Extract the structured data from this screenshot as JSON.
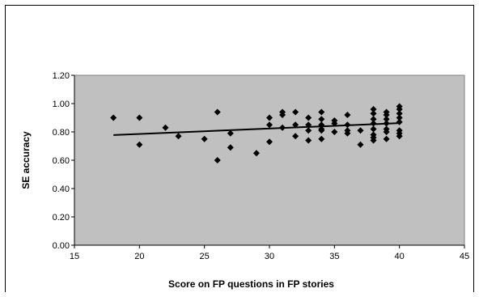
{
  "chart_data": {
    "type": "scatter",
    "title": "",
    "xlabel": "Score on FP questions in FP stories",
    "ylabel": "SE accuracy",
    "xlim": [
      15,
      45
    ],
    "ylim": [
      0,
      1.2
    ],
    "xticks": [
      "15",
      "20",
      "25",
      "30",
      "35",
      "40",
      "45"
    ],
    "yticks": [
      "0.00",
      "0.20",
      "0.40",
      "0.60",
      "0.80",
      "1.00",
      "1.20"
    ],
    "grid": false,
    "legend": "none",
    "plot_background": "#c0c0c0",
    "marker": "diamond",
    "marker_color": "#000000",
    "points": [
      [
        18,
        0.9
      ],
      [
        20,
        0.9
      ],
      [
        20,
        0.71
      ],
      [
        22,
        0.83
      ],
      [
        23,
        0.77
      ],
      [
        25,
        0.75
      ],
      [
        26,
        0.94
      ],
      [
        26,
        0.6
      ],
      [
        27,
        0.79
      ],
      [
        27,
        0.69
      ],
      [
        29,
        0.65
      ],
      [
        30,
        0.9
      ],
      [
        30,
        0.85
      ],
      [
        30,
        0.73
      ],
      [
        31,
        0.94
      ],
      [
        31,
        0.92
      ],
      [
        31,
        0.83
      ],
      [
        32,
        0.94
      ],
      [
        32,
        0.85
      ],
      [
        32,
        0.77
      ],
      [
        33,
        0.9
      ],
      [
        33,
        0.85
      ],
      [
        33,
        0.81
      ],
      [
        33,
        0.74
      ],
      [
        34,
        0.94
      ],
      [
        34,
        0.89
      ],
      [
        34,
        0.85
      ],
      [
        34,
        0.82
      ],
      [
        34,
        0.81
      ],
      [
        34,
        0.75
      ],
      [
        35,
        0.88
      ],
      [
        35,
        0.86
      ],
      [
        35,
        0.8
      ],
      [
        36,
        0.92
      ],
      [
        36,
        0.85
      ],
      [
        36,
        0.81
      ],
      [
        36,
        0.79
      ],
      [
        37,
        0.81
      ],
      [
        37,
        0.71
      ],
      [
        38,
        0.96
      ],
      [
        38,
        0.93
      ],
      [
        38,
        0.89
      ],
      [
        38,
        0.86
      ],
      [
        38,
        0.82
      ],
      [
        38,
        0.78
      ],
      [
        38,
        0.76
      ],
      [
        38,
        0.74
      ],
      [
        39,
        0.94
      ],
      [
        39,
        0.92
      ],
      [
        39,
        0.89
      ],
      [
        39,
        0.86
      ],
      [
        39,
        0.82
      ],
      [
        39,
        0.8
      ],
      [
        39,
        0.75
      ],
      [
        40,
        0.98
      ],
      [
        40,
        0.96
      ],
      [
        40,
        0.93
      ],
      [
        40,
        0.9
      ],
      [
        40,
        0.87
      ],
      [
        40,
        0.81
      ],
      [
        40,
        0.79
      ],
      [
        40,
        0.77
      ]
    ],
    "trendline": {
      "type": "linear",
      "x": [
        18,
        40
      ],
      "y": [
        0.778,
        0.862
      ]
    }
  }
}
